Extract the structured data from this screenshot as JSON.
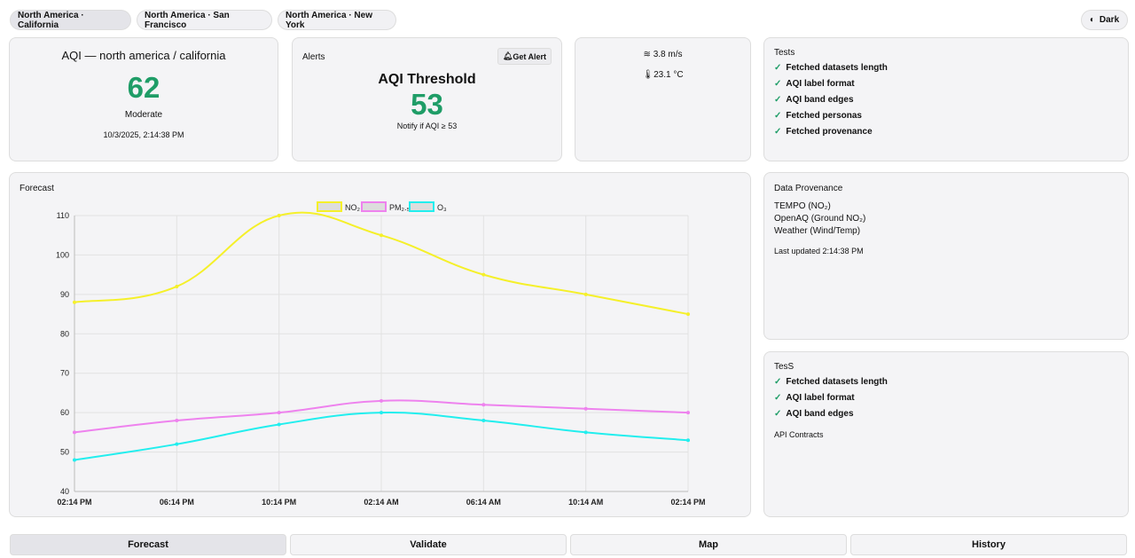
{
  "locations": [
    "North America · California",
    "North America · San Francisco",
    "North America · New York"
  ],
  "theme_toggle": {
    "label": "Dark",
    "icon": "contrast-icon"
  },
  "aqi_card": {
    "title": "AQI — north america / california",
    "value": "62",
    "category": "Moderate",
    "timestamp": "10/3/2025, 2:14:38 PM",
    "color": "#1f9d67"
  },
  "alerts": {
    "title": "Alerts",
    "button": "Get Alert",
    "heading": "AQI Threshold",
    "value": "53",
    "note": "Notify if AQI ≥ 53"
  },
  "weather": {
    "wind": "3.8 m/s",
    "temp": "23.1 °C"
  },
  "tests": {
    "title": "Tests",
    "items": [
      "Fetched datasets length",
      "AQI label format",
      "AQI band edges",
      "Fetched personas",
      "Fetched provenance"
    ]
  },
  "provenance": {
    "title": "Data Provenance",
    "sources": [
      "TEMPO (NO₂)",
      "OpenAQ (Ground NO₂)",
      "Weather (Wind/Temp)"
    ],
    "updated": "Last updated 2:14:38 PM"
  },
  "tests2": {
    "title": "TesS",
    "items": [
      "Fetched datasets length",
      "AQI label format",
      "AQI band edges"
    ],
    "footer": "API Contracts"
  },
  "forecast": {
    "title": "Forecast"
  },
  "chart_data": {
    "type": "line",
    "categories": [
      "02:14 PM",
      "06:14 PM",
      "10:14 PM",
      "02:14 AM",
      "06:14 AM",
      "10:14 AM",
      "02:14 PM"
    ],
    "ylim": [
      40,
      110
    ],
    "yticks": [
      40,
      50,
      60,
      70,
      80,
      90,
      100,
      110
    ],
    "grid": true,
    "legend": "top",
    "series": [
      {
        "name": "NO₂",
        "color": "#f5f02a",
        "values": [
          88,
          92,
          110,
          105,
          95,
          90,
          85
        ]
      },
      {
        "name": "PM₂.₅",
        "color": "#ee82ee",
        "values": [
          55,
          58,
          60,
          63,
          62,
          61,
          60
        ]
      },
      {
        "name": "O₃",
        "color": "#22eeee",
        "values": [
          48,
          52,
          57,
          60,
          58,
          55,
          53
        ]
      }
    ]
  },
  "tabs": [
    "Forecast",
    "Validate",
    "Map",
    "History"
  ]
}
